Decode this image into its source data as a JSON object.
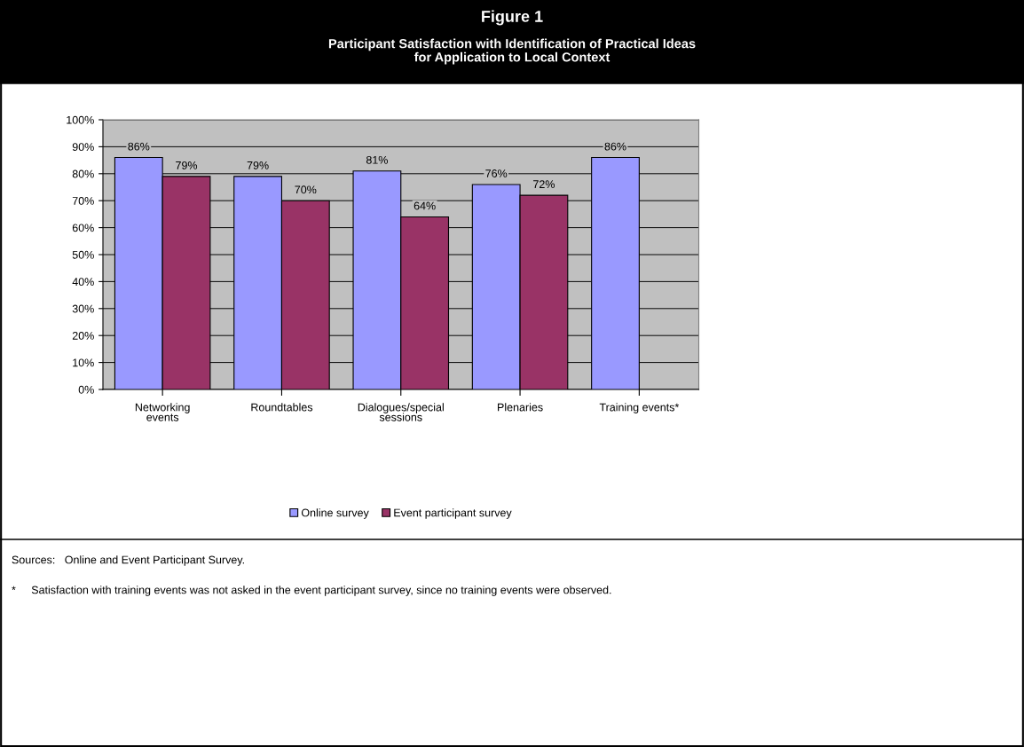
{
  "chart_data": {
    "type": "bar",
    "title": "Figure 1",
    "subtitle": "Participant Satisfaction with Identification of Practical Ideas\nfor Application to Local Context",
    "categories": [
      "Networking\nevents",
      "Roundtables",
      "Dialogues/special\nsessions",
      "Plenaries",
      "Training events*"
    ],
    "series": [
      {
        "name": "Online survey",
        "color": "#9999ff",
        "values": [
          86,
          79,
          81,
          76,
          86
        ],
        "value_labels": [
          "86%",
          "79%",
          "81%",
          "76%",
          "86%"
        ]
      },
      {
        "name": "Event participant survey",
        "color": "#993366",
        "values": [
          79,
          70,
          64,
          72,
          null
        ],
        "value_labels": [
          "79%",
          "70%",
          "64%",
          "72%",
          null
        ]
      }
    ],
    "ylim": [
      0,
      100
    ],
    "yticks": [
      {
        "value": 0,
        "label": "0%"
      },
      {
        "value": 10,
        "label": "10%"
      },
      {
        "value": 20,
        "label": "20%"
      },
      {
        "value": 30,
        "label": "30%"
      },
      {
        "value": 40,
        "label": "40%"
      },
      {
        "value": 50,
        "label": "50%"
      },
      {
        "value": 60,
        "label": "60%"
      },
      {
        "value": 70,
        "label": "70%"
      },
      {
        "value": 80,
        "label": "80%"
      },
      {
        "value": 90,
        "label": "90%"
      },
      {
        "value": 100,
        "label": "100%"
      }
    ],
    "grid": "y",
    "legend": "bottom",
    "annotations": [
      "Sources:   Online and Event Participant Survey.",
      "*     Satisfaction with training events was not asked in the event participant survey, since no training events were observed."
    ]
  }
}
